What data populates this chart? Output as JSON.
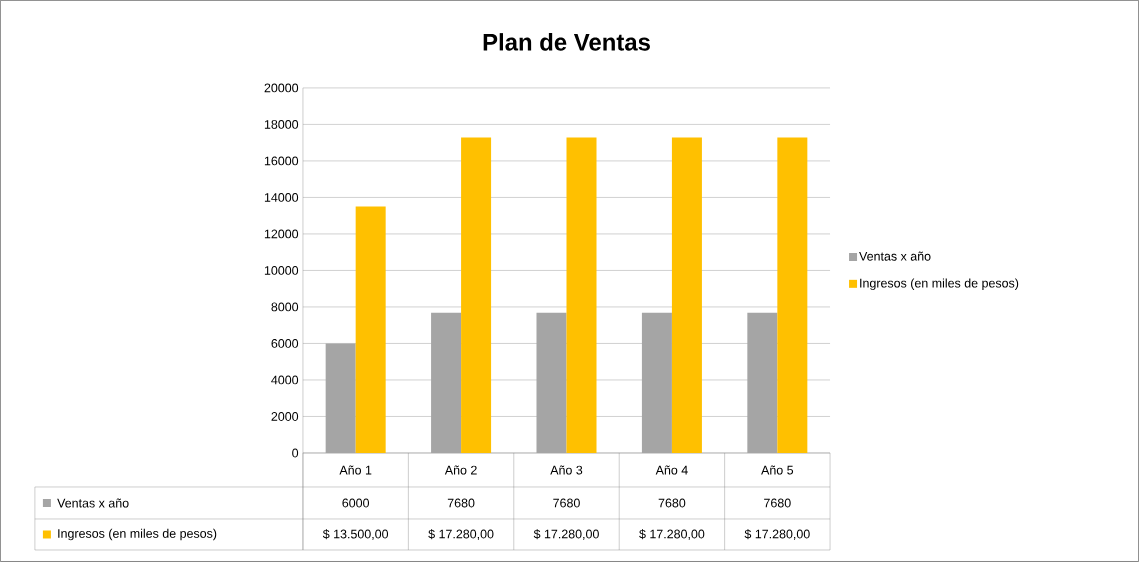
{
  "chart_data": {
    "type": "bar",
    "title": "Plan de Ventas",
    "categories": [
      "Año 1",
      "Año 2",
      "Año 3",
      "Año 4",
      "Año 5"
    ],
    "series": [
      {
        "name": "Ventas x año",
        "color": "#a5a5a5",
        "values": [
          6000,
          7680,
          7680,
          7680,
          7680
        ],
        "value_labels": [
          "6000",
          "7680",
          "7680",
          "7680",
          "7680"
        ]
      },
      {
        "name": "Ingresos (en miles de pesos)",
        "color": "#ffc000",
        "values": [
          13500,
          17280,
          17280,
          17280,
          17280
        ],
        "value_labels": [
          "$ 13.500,00",
          "$ 17.280,00",
          "$ 17.280,00",
          "$ 17.280,00",
          "$ 17.280,00"
        ]
      }
    ],
    "ylim": [
      0,
      20000
    ],
    "yticks": [
      0,
      2000,
      4000,
      6000,
      8000,
      10000,
      12000,
      14000,
      16000,
      18000,
      20000
    ],
    "grid": "y",
    "legend": "right"
  }
}
